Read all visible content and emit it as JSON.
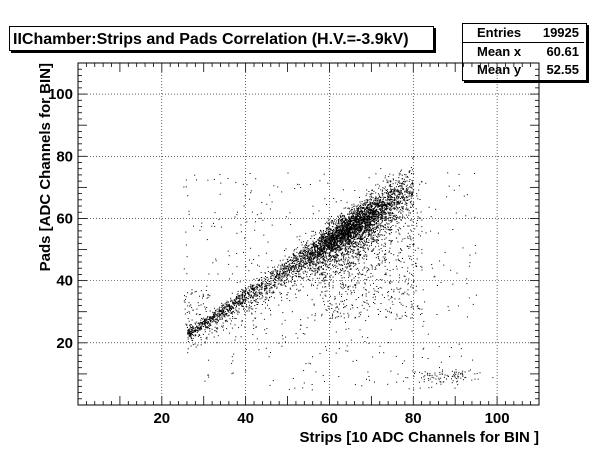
{
  "chart_data": {
    "type": "scatter",
    "title": "IIChamber:Strips and Pads Correlation (H.V.=-3.9kV)",
    "xlabel": "Strips  [10 ADC Channels for BIN ]",
    "ylabel": "Pads [ADC Channels for BIN]",
    "xlim": [
      0,
      110
    ],
    "ylim": [
      0,
      110
    ],
    "xticks": [
      20,
      40,
      60,
      80,
      100
    ],
    "yticks": [
      20,
      40,
      60,
      80,
      100
    ],
    "xtick_labels": [
      "20",
      "40",
      "60",
      "80",
      "100"
    ],
    "ytick_labels": [
      "20",
      "40",
      "60",
      "80",
      "100"
    ],
    "grid": true,
    "stats": {
      "entries_label": "Entries",
      "entries": "19925",
      "mean_x_label": "Mean x",
      "mean_x": "60.61",
      "mean_y_label": "Mean y",
      "mean_y": "52.55"
    },
    "distribution": {
      "main_band": {
        "x_range": [
          26,
          80
        ],
        "y_at_x_start": 23,
        "y_at_x_end": 71,
        "density_peak_x": 65
      },
      "background": {
        "x_range": [
          25,
          95
        ],
        "y_range": [
          5,
          75
        ]
      },
      "secondary_cluster": {
        "x_center": 88,
        "y_center": 9.5
      }
    },
    "colors": {
      "points": "#000000",
      "grid": "#000000",
      "background": "#ffffff"
    }
  }
}
